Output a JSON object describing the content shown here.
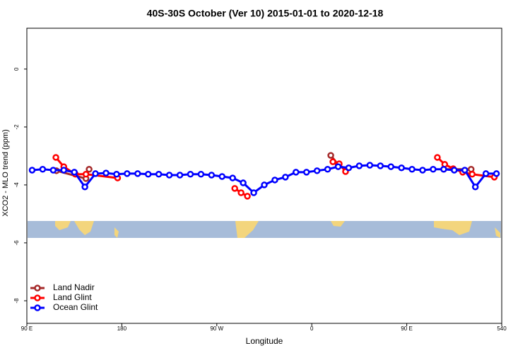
{
  "chart_data": {
    "type": "line",
    "title": "40S-30S October (Ver 10)   2015-01-01 to 2020-12-18",
    "x_label": "Longitude",
    "y_label": "XCO2 - MLO trend (ppm)",
    "xlim": [
      90,
      540
    ],
    "ylim": [
      -8.78,
      1.41
    ],
    "xticks": [
      {
        "value": 90,
        "label": "90 E"
      },
      180,
      {
        "value": 270,
        "label": "90 W"
      },
      {
        "value": 360,
        "label": "0"
      },
      {
        "value": 450,
        "label": "90 E"
      },
      540
    ],
    "yticks": [
      0,
      -2,
      -4,
      -6,
      -8
    ],
    "legend": "bottom-left",
    "series": [
      {
        "name": "Land Nadir",
        "color": "#a52a2a",
        "x": [
          118,
          146,
          149,
          260,
          378,
          385,
          440,
          485,
          511
        ],
        "values": [
          -3.51,
          -3.78,
          -3.46,
          null,
          -2.98,
          -3.3,
          null,
          -3.46,
          -3.46
        ]
      },
      {
        "name": "Land Glint",
        "color": "#ff0000",
        "x": [
          117.5,
          125,
          136,
          146,
          176,
          230,
          287,
          293,
          299,
          340,
          380,
          386,
          392,
          440,
          479,
          486,
          494,
          503,
          512,
          533
        ],
        "values": [
          -3.05,
          -3.37,
          -3.63,
          -3.63,
          -3.76,
          null,
          -4.12,
          -4.27,
          -4.39,
          null,
          -3.2,
          -3.27,
          -3.54,
          null,
          -3.05,
          -3.29,
          -3.44,
          -3.56,
          -3.63,
          -3.73
        ]
      },
      {
        "name": "Ocean Glint",
        "color": "#0000ff",
        "x": [
          95,
          105,
          115,
          125,
          135,
          145,
          155,
          165,
          175,
          185,
          195,
          205,
          215,
          225,
          235,
          245,
          255,
          265,
          275,
          285,
          295,
          305,
          315,
          325,
          335,
          345,
          355,
          365,
          375,
          385,
          395,
          405,
          415,
          425,
          435,
          445,
          455,
          465,
          475,
          485,
          495,
          505,
          515,
          525,
          535
        ],
        "values": [
          -3.49,
          -3.46,
          -3.49,
          -3.49,
          -3.56,
          -4.07,
          -3.61,
          -3.59,
          -3.63,
          -3.61,
          -3.61,
          -3.63,
          -3.63,
          -3.66,
          -3.66,
          -3.63,
          -3.63,
          -3.66,
          -3.71,
          -3.76,
          -3.93,
          -4.27,
          -4.0,
          -3.83,
          -3.73,
          -3.56,
          -3.56,
          -3.51,
          -3.46,
          -3.37,
          -3.41,
          -3.34,
          -3.32,
          -3.34,
          -3.37,
          -3.41,
          -3.46,
          -3.49,
          -3.46,
          -3.46,
          -3.49,
          -3.49,
          -4.07,
          -3.61,
          -3.61
        ]
      }
    ]
  }
}
